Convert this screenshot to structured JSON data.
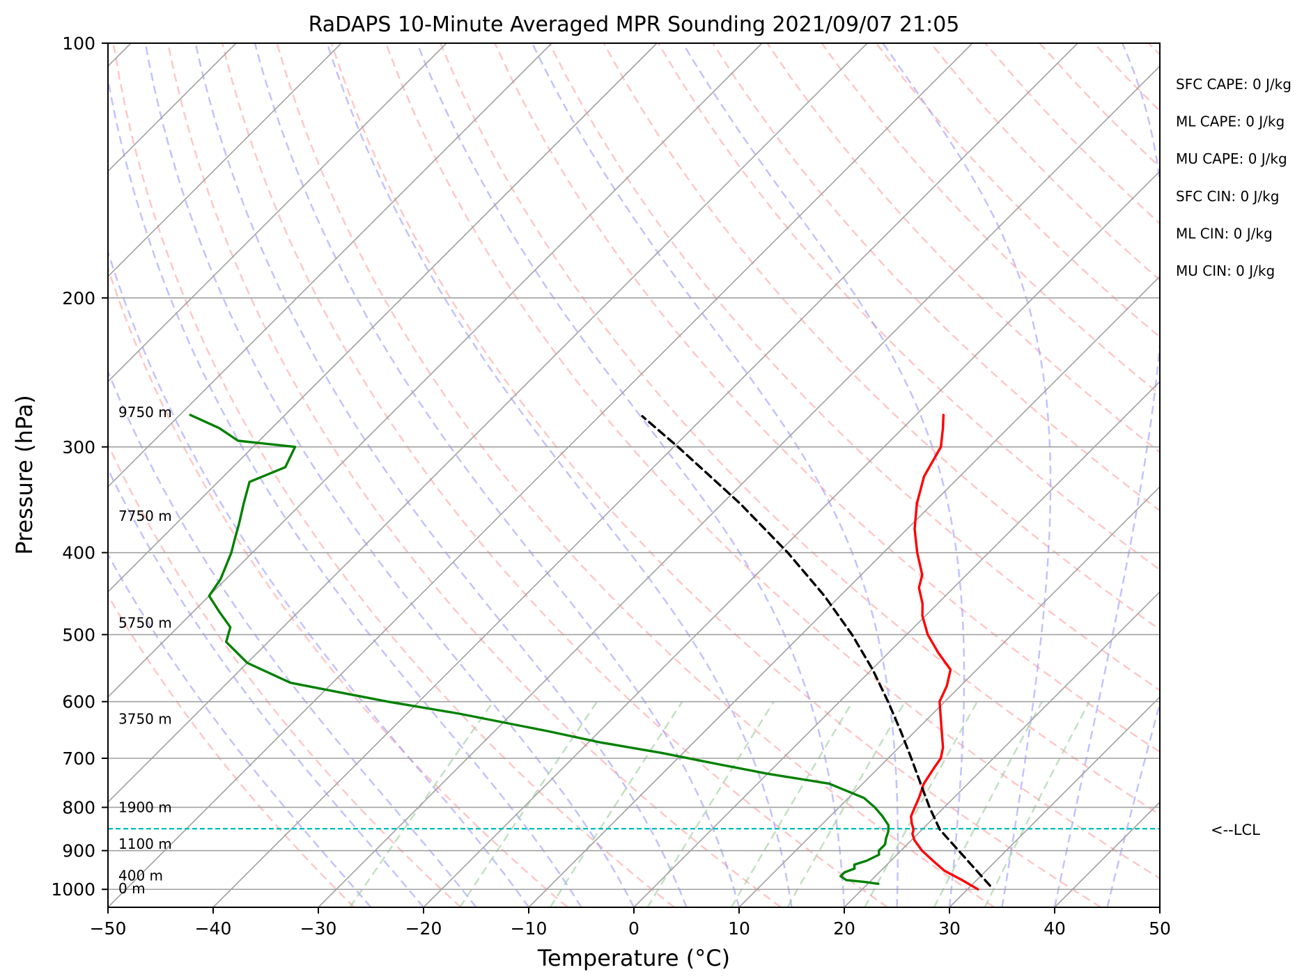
{
  "chart_data": {
    "type": "line",
    "subtype": "skew-t log-p sounding",
    "title": "RaDAPS 10-Minute Averaged MPR Sounding 2021/09/07 21:05",
    "xlabel": "Temperature (°C)",
    "ylabel": "Pressure (hPa)",
    "xlim": [
      -50,
      50
    ],
    "ylim": [
      1050,
      100
    ],
    "y_scale": "log",
    "skew_deg_per_decade_visual": "45",
    "x_ticks": [
      -50,
      -40,
      -30,
      -20,
      -10,
      0,
      10,
      20,
      30,
      40,
      50
    ],
    "x_tick_labels": [
      "−50",
      "−40",
      "−30",
      "−20",
      "−10",
      "0",
      "10",
      "20",
      "30",
      "40",
      "50"
    ],
    "y_ticks": [
      100,
      200,
      300,
      400,
      500,
      600,
      700,
      800,
      900,
      1000
    ],
    "y_tick_labels": [
      "100",
      "200",
      "300",
      "400",
      "500",
      "600",
      "700",
      "800",
      "900",
      "1000"
    ],
    "grid": true,
    "colors": {
      "temperature": "#ff0000",
      "dewpoint": "#008000",
      "parcel": "#000000",
      "lcl": "#00bfbf",
      "dry_adiabat": "#ff9999",
      "moist_adiabat": "#9999ff",
      "mixing_ratio": "#99cc99",
      "isotherm": "#a0a0a0"
    },
    "series": [
      {
        "key": "temperature",
        "points": [
          [
            1000,
            31
          ],
          [
            975,
            28.6
          ],
          [
            950,
            26
          ],
          [
            925,
            24
          ],
          [
            900,
            22
          ],
          [
            875,
            20.3
          ],
          [
            860,
            19.5
          ],
          [
            850,
            19.2
          ],
          [
            835,
            18.4
          ],
          [
            820,
            17.7
          ],
          [
            800,
            17.2
          ],
          [
            780,
            16.7
          ],
          [
            750,
            15.8
          ],
          [
            720,
            15.3
          ],
          [
            700,
            15
          ],
          [
            680,
            14.2
          ],
          [
            650,
            12.5
          ],
          [
            600,
            9.5
          ],
          [
            575,
            8.7
          ],
          [
            550,
            7.5
          ],
          [
            525,
            4.7
          ],
          [
            500,
            2
          ],
          [
            475,
            -0.3
          ],
          [
            460,
            -1.4
          ],
          [
            440,
            -3.3
          ],
          [
            425,
            -4.2
          ],
          [
            400,
            -6.8
          ],
          [
            375,
            -9.3
          ],
          [
            350,
            -11.5
          ],
          [
            325,
            -13.4
          ],
          [
            300,
            -14.6
          ],
          [
            285,
            -16.2
          ],
          [
            275,
            -17.4
          ]
        ]
      },
      {
        "key": "dewpoint",
        "points": [
          [
            985,
            21
          ],
          [
            980,
            19.5
          ],
          [
            975,
            17.6
          ],
          [
            965,
            16.7
          ],
          [
            955,
            16.7
          ],
          [
            945,
            17.3
          ],
          [
            935,
            16.9
          ],
          [
            925,
            17.7
          ],
          [
            910,
            18.3
          ],
          [
            900,
            17.9
          ],
          [
            885,
            17.9
          ],
          [
            870,
            17.4
          ],
          [
            855,
            17
          ],
          [
            840,
            16.4
          ],
          [
            820,
            15
          ],
          [
            800,
            13.4
          ],
          [
            780,
            11.5
          ],
          [
            750,
            6.8
          ],
          [
            730,
            0
          ],
          [
            710,
            -6
          ],
          [
            690,
            -12
          ],
          [
            670,
            -19
          ],
          [
            650,
            -25
          ],
          [
            620,
            -35
          ],
          [
            600,
            -43
          ],
          [
            570,
            -54
          ],
          [
            540,
            -60
          ],
          [
            510,
            -64
          ],
          [
            490,
            -65
          ],
          [
            470,
            -67.5
          ],
          [
            450,
            -70
          ],
          [
            430,
            -70.5
          ],
          [
            400,
            -72
          ],
          [
            385,
            -73
          ],
          [
            370,
            -74
          ],
          [
            350,
            -75.5
          ],
          [
            330,
            -77
          ],
          [
            317,
            -75
          ],
          [
            300,
            -76
          ],
          [
            295,
            -82
          ],
          [
            285,
            -85
          ],
          [
            275,
            -89
          ]
        ]
      },
      {
        "key": "parcel",
        "points": [
          [
            990,
            31.8
          ],
          [
            850,
            21.7
          ],
          [
            800,
            18.6
          ],
          [
            750,
            15.5
          ],
          [
            700,
            12.2
          ],
          [
            650,
            8.6
          ],
          [
            600,
            4.6
          ],
          [
            550,
            0.1
          ],
          [
            500,
            -5.2
          ],
          [
            450,
            -11.5
          ],
          [
            400,
            -19.1
          ],
          [
            350,
            -28.3
          ],
          [
            300,
            -39.6
          ],
          [
            276,
            -45.9
          ]
        ]
      }
    ],
    "lcl_pressure": 848,
    "height_markers": [
      {
        "label": "9750 m",
        "p": 273
      },
      {
        "label": "7750 m",
        "p": 362
      },
      {
        "label": "5750 m",
        "p": 484
      },
      {
        "label": "3750 m",
        "p": 629
      },
      {
        "label": "1900 m",
        "p": 800
      },
      {
        "label": "1100 m",
        "p": 884
      },
      {
        "label": "400 m",
        "p": 963
      },
      {
        "label": "0 m",
        "p": 998
      }
    ]
  },
  "indices": [
    {
      "text": "SFC CAPE: 0 J/kg"
    },
    {
      "text": "ML CAPE: 0 J/kg"
    },
    {
      "text": "MU CAPE: 0 J/kg"
    },
    {
      "text": "SFC CIN: 0 J/kg"
    },
    {
      "text": "ML CIN: 0 J/kg"
    },
    {
      "text": "MU CIN: 0 J/kg"
    }
  ],
  "lcl_label": "<--LCL"
}
